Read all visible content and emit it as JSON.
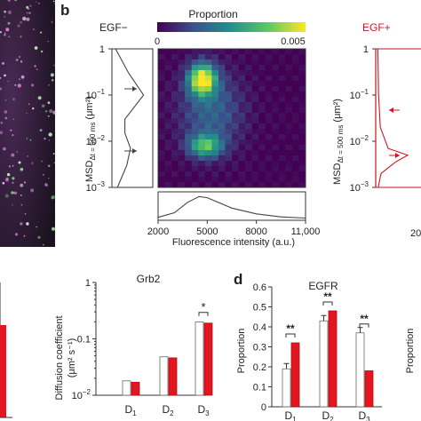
{
  "panel_labels": {
    "b": "b",
    "d": "d"
  },
  "colorbar": {
    "title": "Proportion",
    "min_label": "0",
    "max_label": "0.005"
  },
  "conditions": {
    "neg": "EGF−",
    "pos": "EGF+"
  },
  "msd_axis": {
    "label_main": "MSD",
    "label_sub": "Δt = 500 ms",
    "label_unit": " (μm²)",
    "ticks": [
      "10",
      "10",
      "10",
      "1"
    ],
    "tick_exponents": [
      "−3",
      "−2",
      "−1",
      ""
    ]
  },
  "fluor_axis": {
    "label": "Fluorescence intensity (a.u.)",
    "ticks": [
      "2000",
      "5000",
      "8000",
      "11,000"
    ],
    "cut_tick": "20"
  },
  "grb2_chart": {
    "title": "Grb2",
    "ylabel": "Diffusion coefficient",
    "ylabel_unit": "(μm² s⁻¹)",
    "yticks": [
      "10",
      "0.1",
      "1"
    ],
    "ytick_exponent": "−2",
    "categories": [
      "D1",
      "D2",
      "D3"
    ],
    "sig": "*"
  },
  "egfr_chart": {
    "title": "EGFR",
    "ylabel": "Proportion",
    "yticks": [
      "0",
      "0.1",
      "0.2",
      "0.3",
      "0.4",
      "0.5",
      "0.6"
    ],
    "categories": [
      "D1",
      "D2",
      "D3"
    ],
    "sig": [
      "**",
      "**",
      "**"
    ]
  },
  "cut_right_label": "Proportion",
  "chart_data": [
    {
      "type": "heatmap",
      "panel": "b (EGF−)",
      "title": "Proportion",
      "xlabel": "Fluorescence intensity (a.u.)",
      "ylabel": "MSDΔt = 500 ms (μm²)",
      "xlim": [
        2000,
        11000
      ],
      "ylim": [
        0.001,
        1
      ],
      "ylog": true,
      "color_range": [
        0,
        0.005
      ],
      "peaks": [
        {
          "x": 5000,
          "y": 0.1,
          "value": 0.005
        },
        {
          "x": 5000,
          "y": 0.007,
          "value": 0.0035
        }
      ]
    },
    {
      "type": "line",
      "panel": "b (EGF−, x marginal)",
      "x": [
        2000,
        3000,
        3800,
        4500,
        5000,
        5500,
        6500,
        8000,
        9500,
        11000
      ],
      "y": [
        0.05,
        0.25,
        0.7,
        0.95,
        0.9,
        0.75,
        0.45,
        0.2,
        0.07,
        0.02
      ]
    },
    {
      "type": "line",
      "panel": "b (EGF−, y marginal)",
      "x": [
        0.001,
        0.003,
        0.007,
        0.015,
        0.03,
        0.1,
        0.3,
        1
      ],
      "y": [
        0.1,
        0.35,
        0.45,
        0.3,
        0.3,
        0.8,
        0.4,
        0.05
      ]
    },
    {
      "type": "bar",
      "panel": "Grb2",
      "title": "Grb2",
      "ylabel": "Diffusion coefficient (μm² s⁻¹)",
      "ylog": true,
      "ylim": [
        0.01,
        1
      ],
      "categories": [
        "D1",
        "D2",
        "D3"
      ],
      "series": [
        {
          "color": "#ffffff",
          "values": [
            0.018,
            0.048,
            0.2
          ]
        },
        {
          "color": "#e3151e",
          "values": [
            0.017,
            0.046,
            0.19
          ]
        }
      ]
    },
    {
      "type": "bar",
      "panel": "d EGFR",
      "title": "EGFR",
      "ylabel": "Proportion",
      "ylim": [
        0,
        0.6
      ],
      "categories": [
        "D1",
        "D2",
        "D3"
      ],
      "series": [
        {
          "color": "#ffffff",
          "values": [
            0.19,
            0.43,
            0.37
          ]
        },
        {
          "color": "#e3151e",
          "values": [
            0.32,
            0.48,
            0.18
          ]
        }
      ]
    }
  ]
}
